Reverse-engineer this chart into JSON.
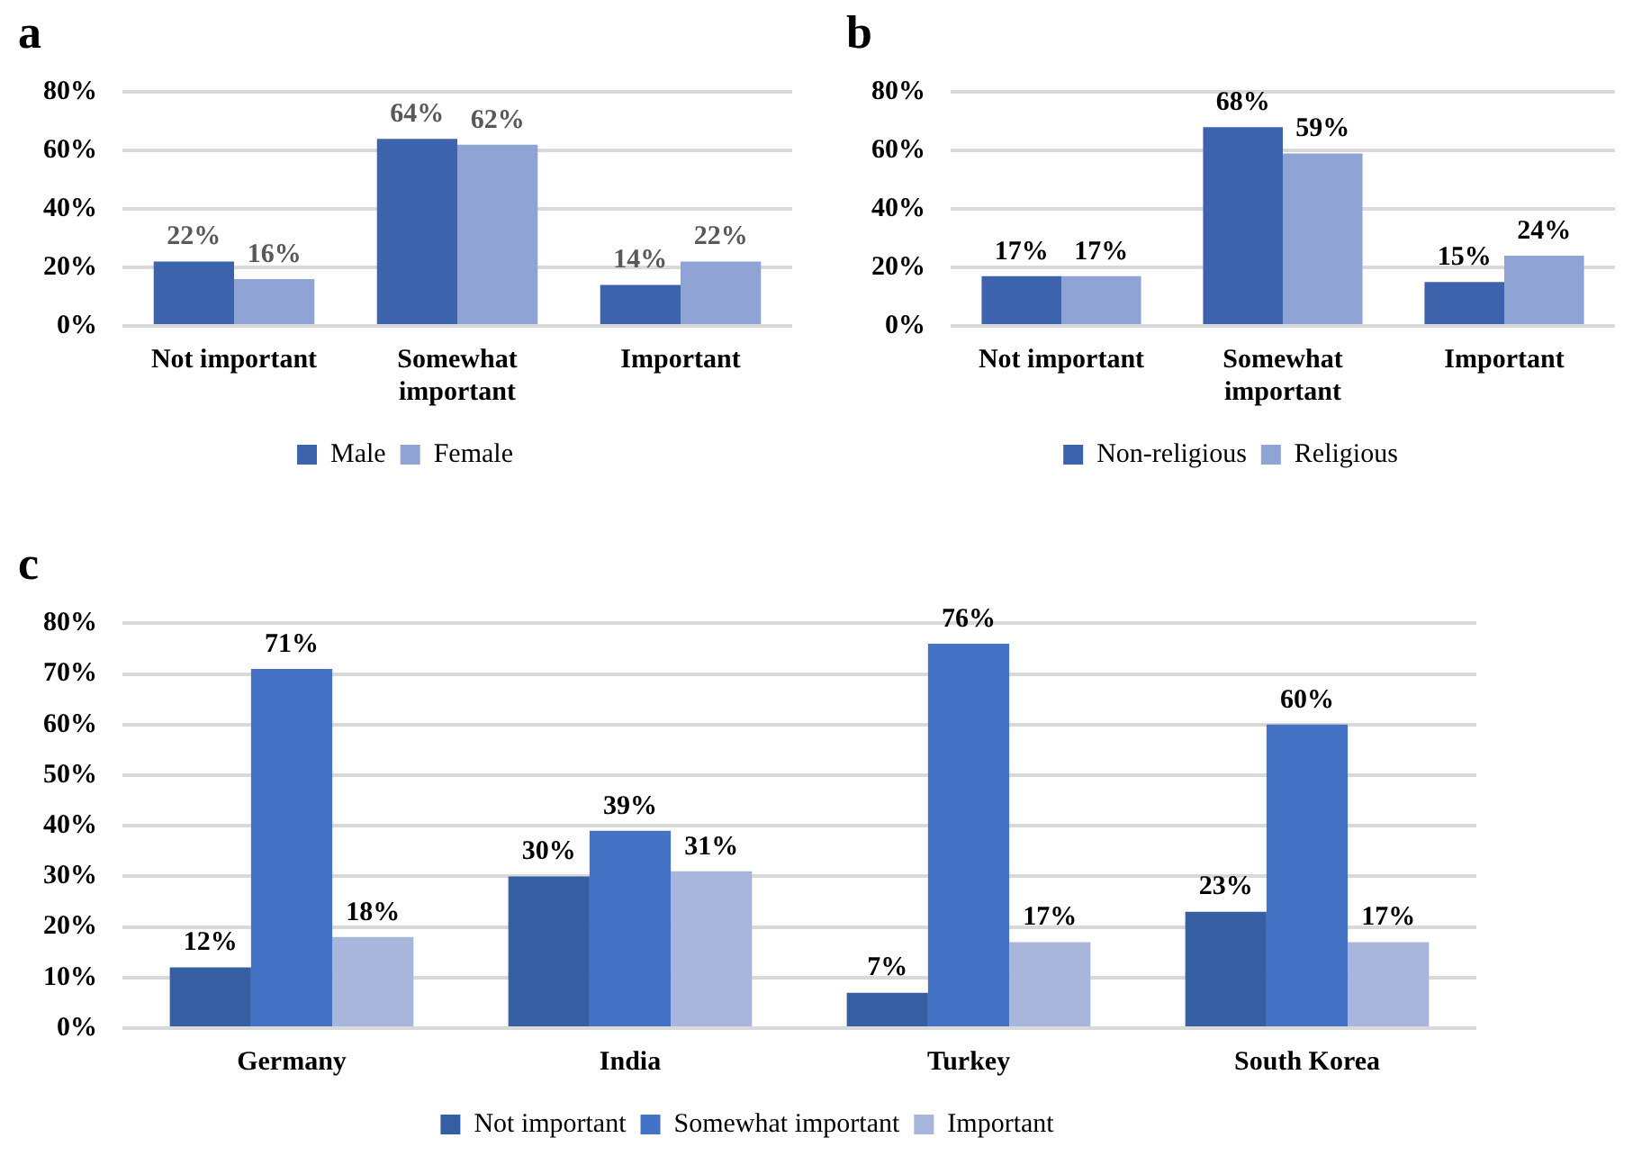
{
  "chart_data": [
    {
      "type": "bar",
      "title": "a",
      "categories": [
        "Not important",
        "Somewhat important",
        "Important"
      ],
      "series": [
        {
          "name": "Male",
          "color": "#3d63ad",
          "values": [
            22,
            64,
            14
          ],
          "value_labels": [
            "22%",
            "64%",
            "14%"
          ]
        },
        {
          "name": "Female",
          "color": "#8fa3d4",
          "values": [
            16,
            62,
            22
          ],
          "value_labels": [
            "16%",
            "62%",
            "22%"
          ]
        }
      ],
      "ylim": [
        0,
        80
      ],
      "yticks": [
        {
          "value": 0,
          "label": "0%"
        },
        {
          "value": 20,
          "label": "20%"
        },
        {
          "value": 40,
          "label": "40%"
        },
        {
          "value": 60,
          "label": "60%"
        },
        {
          "value": 80,
          "label": "80%"
        }
      ],
      "grid": "y",
      "legend": "bottom"
    },
    {
      "type": "bar",
      "title": "b",
      "categories": [
        "Not important",
        "Somewhat important",
        "Important"
      ],
      "series": [
        {
          "name": "Non-religious",
          "color": "#3d63ad",
          "values": [
            17,
            68,
            15
          ],
          "value_labels": [
            "17%",
            "68%",
            "15%"
          ]
        },
        {
          "name": "Religious",
          "color": "#8fa3d4",
          "values": [
            17,
            59,
            24
          ],
          "value_labels": [
            "17%",
            "59%",
            "24%"
          ]
        }
      ],
      "ylim": [
        0,
        80
      ],
      "yticks": [
        {
          "value": 0,
          "label": "0%"
        },
        {
          "value": 20,
          "label": "20%"
        },
        {
          "value": 40,
          "label": "40%"
        },
        {
          "value": 60,
          "label": "60%"
        },
        {
          "value": 80,
          "label": "80%"
        }
      ],
      "grid": "y",
      "legend": "bottom"
    },
    {
      "type": "bar",
      "title": "c",
      "categories": [
        "Germany",
        "India",
        "Turkey",
        "South Korea"
      ],
      "series": [
        {
          "name": "Not important",
          "color": "#365ea3",
          "values": [
            12,
            30,
            7,
            23
          ],
          "value_labels": [
            "12%",
            "30%",
            "7%",
            "23%"
          ]
        },
        {
          "name": "Somewhat important",
          "color": "#4472c4",
          "values": [
            71,
            39,
            76,
            60
          ],
          "value_labels": [
            "71%",
            "39%",
            "76%",
            "60%"
          ]
        },
        {
          "name": "Important",
          "color": "#a8b6db",
          "values": [
            18,
            31,
            17,
            17
          ],
          "value_labels": [
            "18%",
            "31%",
            "17%",
            "17%"
          ]
        }
      ],
      "ylim": [
        0,
        80
      ],
      "yticks": [
        {
          "value": 0,
          "label": "0%"
        },
        {
          "value": 10,
          "label": "10%"
        },
        {
          "value": 20,
          "label": "20%"
        },
        {
          "value": 30,
          "label": "30%"
        },
        {
          "value": 40,
          "label": "40%"
        },
        {
          "value": 50,
          "label": "50%"
        },
        {
          "value": 60,
          "label": "60%"
        },
        {
          "value": 70,
          "label": "70%"
        },
        {
          "value": 80,
          "label": "80%"
        }
      ],
      "grid": "y",
      "legend": "bottom"
    }
  ]
}
